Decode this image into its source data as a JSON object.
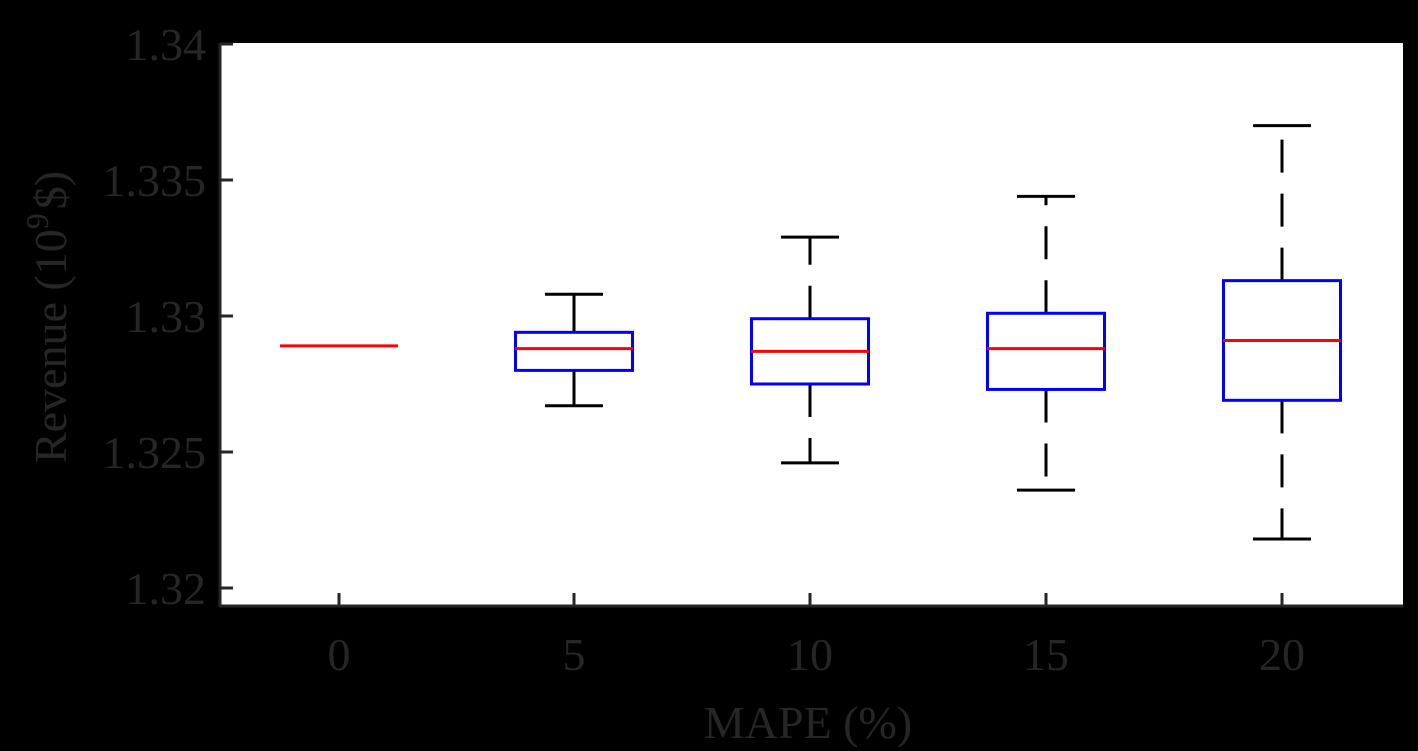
{
  "chart_data": {
    "type": "box",
    "title": "",
    "xlabel": "MAPE (%)",
    "ylabel": "Revenue (10^9 $)",
    "ylabel_parts": {
      "main": "Revenue (10",
      "sup": "9",
      "tail": "$)"
    },
    "categories": [
      "0",
      "5",
      "10",
      "15",
      "20"
    ],
    "ylim": [
      1.3195,
      1.34
    ],
    "yticks": [
      1.32,
      1.325,
      1.33,
      1.335,
      1.34
    ],
    "ytick_labels": [
      "1.32",
      "1.325",
      "1.33",
      "1.335",
      "1.34"
    ],
    "xtick_labels": [
      "0",
      "5",
      "10",
      "15",
      "20"
    ],
    "grid": false,
    "legend": null,
    "series": [
      {
        "name": "0",
        "whisker_low": 1.3289,
        "q1": 1.3289,
        "median": 1.3289,
        "q3": 1.3289,
        "whisker_high": 1.3289
      },
      {
        "name": "5",
        "whisker_low": 1.3267,
        "q1": 1.328,
        "median": 1.3288,
        "q3": 1.3294,
        "whisker_high": 1.3308
      },
      {
        "name": "10",
        "whisker_low": 1.3246,
        "q1": 1.3275,
        "median": 1.3287,
        "q3": 1.3299,
        "whisker_high": 1.3329
      },
      {
        "name": "15",
        "whisker_low": 1.3236,
        "q1": 1.3273,
        "median": 1.3288,
        "q3": 1.3301,
        "whisker_high": 1.3344
      },
      {
        "name": "20",
        "whisker_low": 1.3218,
        "q1": 1.3269,
        "median": 1.3291,
        "q3": 1.3313,
        "whisker_high": 1.337
      }
    ],
    "colors": {
      "box": "#0000ff",
      "median": "#ff0000",
      "whisker": "#000000",
      "axis": "#262626",
      "plot_bg": "#ffffff",
      "figure_bg": "#000000"
    }
  }
}
